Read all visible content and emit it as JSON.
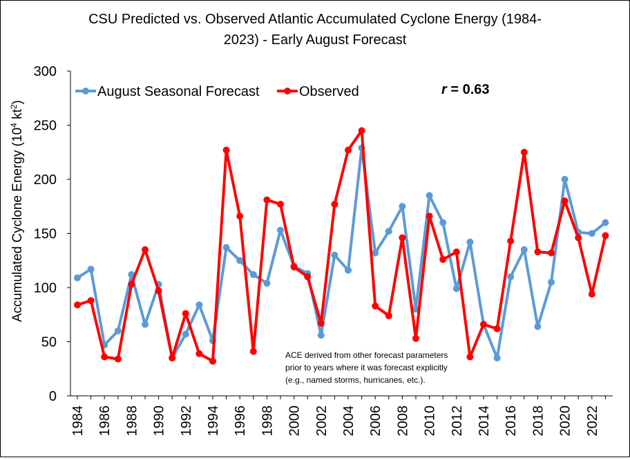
{
  "chart_data": {
    "type": "line",
    "title_line1": "CSU Predicted vs. Observed Atlantic Accumulated Cyclone Energy (1984-",
    "title_line2": "2023) - Early August Forecast",
    "ylabel": "Accumulated Cyclone Energy (10",
    "ylabel_sup": "4",
    "ylabel_tail": " kt",
    "ylabel_sup2": "2",
    "ylabel_end": ")",
    "ylim": [
      0,
      300
    ],
    "yticks": [
      0,
      50,
      100,
      150,
      200,
      250,
      300
    ],
    "x": [
      1984,
      1985,
      1986,
      1987,
      1988,
      1989,
      1990,
      1991,
      1992,
      1993,
      1994,
      1995,
      1996,
      1997,
      1998,
      1999,
      2000,
      2001,
      2002,
      2003,
      2004,
      2005,
      2006,
      2007,
      2008,
      2009,
      2010,
      2011,
      2012,
      2013,
      2014,
      2015,
      2016,
      2017,
      2018,
      2019,
      2020,
      2021,
      2022,
      2023
    ],
    "xtick_labels": [
      "1984",
      "1986",
      "1988",
      "1990",
      "1992",
      "1994",
      "1996",
      "1998",
      "2000",
      "2002",
      "2004",
      "2006",
      "2008",
      "2010",
      "2012",
      "2014",
      "2016",
      "2018",
      "2020",
      "2022"
    ],
    "grid": false,
    "legend_position": "top-left",
    "series": [
      {
        "name": "August Seasonal Forecast",
        "color": "#5B9BD5",
        "values": [
          109,
          117,
          47,
          60,
          112,
          66,
          103,
          35,
          57,
          84,
          51,
          137,
          125,
          112,
          104,
          153,
          120,
          113,
          56,
          130,
          116,
          229,
          132,
          152,
          175,
          80,
          185,
          160,
          99,
          142,
          66,
          35,
          110,
          135,
          64,
          105,
          200,
          151,
          150,
          160
        ]
      },
      {
        "name": "Observed",
        "color": "#FF0000",
        "values": [
          84,
          88,
          36,
          34,
          103,
          135,
          97,
          35,
          76,
          39,
          32,
          227,
          166,
          41,
          181,
          177,
          119,
          110,
          67,
          177,
          227,
          245,
          83,
          74,
          146,
          53,
          166,
          126,
          133,
          36,
          66,
          62,
          143,
          225,
          133,
          132,
          180,
          146,
          94,
          148
        ]
      }
    ],
    "annotation_r": "r = 0.63",
    "annotation_r_italic": "r",
    "annotation_r_rest": " = 0.63",
    "note_lines": [
      "ACE derived from other forecast parameters",
      "prior to years where it was forecast explicitly",
      "(e.g., named storms, hurricanes, etc.)."
    ]
  }
}
